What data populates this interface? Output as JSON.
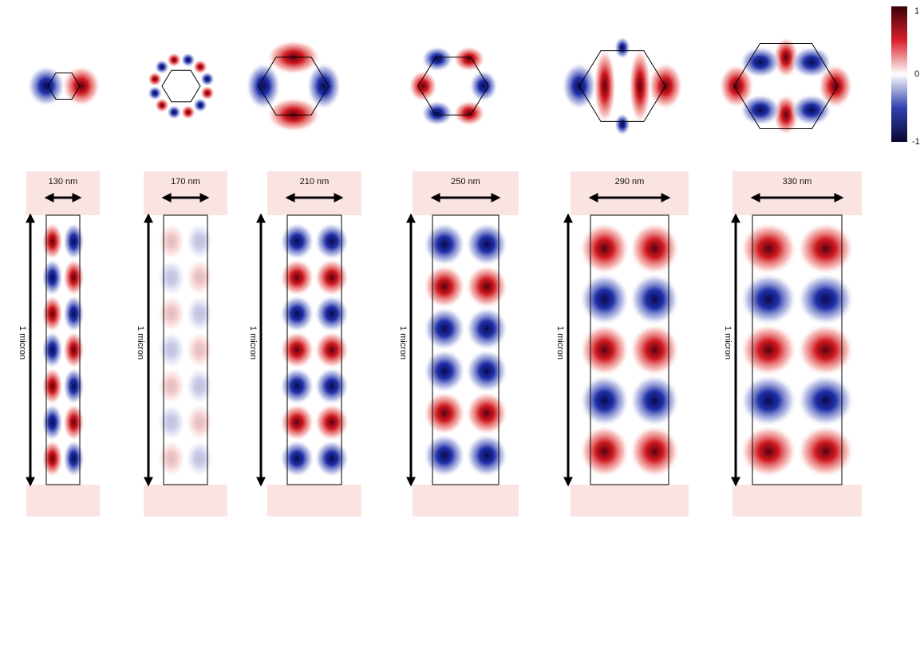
{
  "colorbar": {
    "max": 1,
    "mid": 0,
    "min": -1
  },
  "panels": [
    {
      "width_label": "130 nm",
      "height_label": "1 micron"
    },
    {
      "width_label": "170 nm",
      "height_label": "1 micron"
    },
    {
      "width_label": "210 nm",
      "height_label": "1 micron"
    },
    {
      "width_label": "250 nm",
      "height_label": "1 micron"
    },
    {
      "width_label": "290 nm",
      "height_label": "1 micron"
    },
    {
      "width_label": "330 nm",
      "height_label": "1 micron"
    }
  ]
}
